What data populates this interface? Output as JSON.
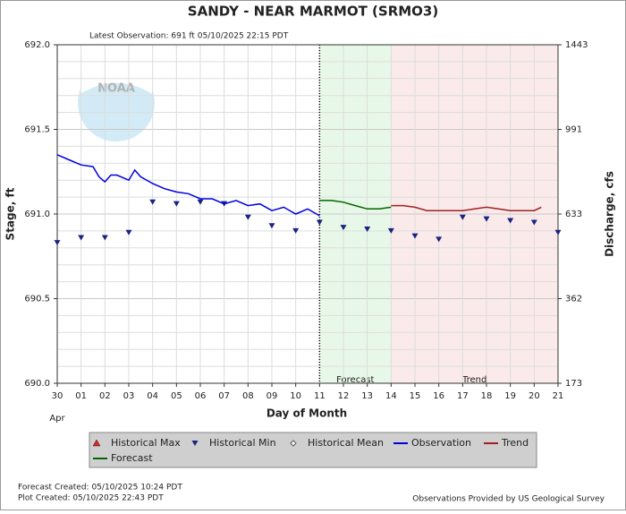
{
  "chart_data": {
    "type": "hydrograph",
    "title": "SANDY - NEAR MARMOT  (SRMO3)",
    "subtitle": "Latest Observation: 691 ft 05/10/2025 22:15 PDT",
    "logo_text": "NOAA",
    "ylabel": "Stage, ft",
    "y2label": "Discharge, cfs",
    "xlabel": "Day of Month",
    "month_label": "Apr",
    "xlim": [
      0,
      21
    ],
    "xticks": [
      {
        "value": 0,
        "label": "30"
      },
      {
        "value": 1,
        "label": "01"
      },
      {
        "value": 2,
        "label": "02"
      },
      {
        "value": 3,
        "label": "03"
      },
      {
        "value": 4,
        "label": "04"
      },
      {
        "value": 5,
        "label": "05"
      },
      {
        "value": 6,
        "label": "06"
      },
      {
        "value": 7,
        "label": "07"
      },
      {
        "value": 8,
        "label": "08"
      },
      {
        "value": 9,
        "label": "09"
      },
      10,
      11,
      12,
      13,
      14,
      15,
      16,
      17,
      18,
      19,
      20,
      21
    ],
    "ylim": [
      690,
      692
    ],
    "yticks": [
      {
        "value": 690,
        "label": "690.0"
      },
      690.5,
      {
        "value": 691,
        "label": "691.0"
      },
      691.5,
      {
        "value": 692,
        "label": "692.0"
      }
    ],
    "y_minor_ticks": [
      690.1,
      690.2,
      690.3,
      690.4,
      690.6,
      690.7,
      690.8,
      690.9,
      691.1,
      691.2,
      691.3,
      691.4,
      691.6,
      691.7,
      691.8,
      691.9
    ],
    "y2ticks": [
      173,
      362,
      633,
      991,
      1443
    ],
    "grid": true,
    "current_time": 11,
    "regions": [
      {
        "label": "Forecast",
        "color": "#e8f8e8",
        "xlim": [
          11,
          14
        ]
      },
      {
        "label": "Trend",
        "color": "#fbeaea",
        "xlim": [
          14,
          21
        ]
      }
    ],
    "series": [
      {
        "name": "Historical Max",
        "color": "#c03030",
        "marker": "triangle-up",
        "x": [],
        "values": []
      },
      {
        "name": "Historical Min",
        "color": "#1a237e",
        "marker": "triangle-down",
        "x": [
          0,
          1,
          2,
          3,
          4,
          5,
          6,
          7,
          8,
          9,
          10,
          11,
          12,
          13,
          14,
          15,
          16,
          17,
          18,
          19,
          20,
          21
        ],
        "values": [
          690.83,
          690.86,
          690.86,
          690.89,
          691.07,
          691.06,
          691.07,
          691.06,
          690.98,
          690.93,
          690.9,
          690.95,
          690.92,
          690.91,
          690.9,
          690.87,
          690.85,
          690.98,
          690.97,
          690.96,
          690.95,
          690.89
        ]
      },
      {
        "name": "Historical Mean",
        "color": "#555555",
        "marker": "diamond",
        "x": [],
        "values": []
      },
      {
        "name": "Observation",
        "color": "#0000dd",
        "marker": "line",
        "x": [
          0,
          0.5,
          1,
          1.5,
          1.75,
          2,
          2.25,
          2.5,
          3,
          3.25,
          3.5,
          4,
          4.5,
          5,
          5.5,
          6,
          6.5,
          7,
          7.5,
          8,
          8.5,
          9,
          9.5,
          10,
          10.5,
          11
        ],
        "values": [
          691.35,
          691.32,
          691.29,
          691.28,
          691.22,
          691.19,
          691.23,
          691.23,
          691.2,
          691.26,
          691.22,
          691.18,
          691.15,
          691.13,
          691.12,
          691.09,
          691.09,
          691.06,
          691.08,
          691.05,
          691.06,
          691.02,
          691.04,
          691.0,
          691.03,
          690.99
        ]
      },
      {
        "name": "Trend",
        "color": "#a02020",
        "marker": "line",
        "x": [
          14,
          14.5,
          15,
          15.5,
          16,
          16.5,
          17,
          17.5,
          18,
          18.5,
          19,
          19.5,
          20,
          20.3
        ],
        "values": [
          691.05,
          691.05,
          691.04,
          691.02,
          691.02,
          691.02,
          691.02,
          691.03,
          691.04,
          691.03,
          691.02,
          691.02,
          691.02,
          691.04
        ]
      },
      {
        "name": "Forecast",
        "color": "#006600",
        "marker": "line",
        "x": [
          11,
          11.5,
          12,
          12.5,
          13,
          13.5,
          14
        ],
        "values": [
          691.08,
          691.08,
          691.07,
          691.05,
          691.03,
          691.03,
          691.04
        ]
      }
    ],
    "footer_left": [
      "Forecast Created: 05/10/2025 10:24 PDT",
      "Plot Created: 05/10/2025 22:43 PDT"
    ],
    "footer_right": "Observations Provided by US Geological Survey"
  }
}
